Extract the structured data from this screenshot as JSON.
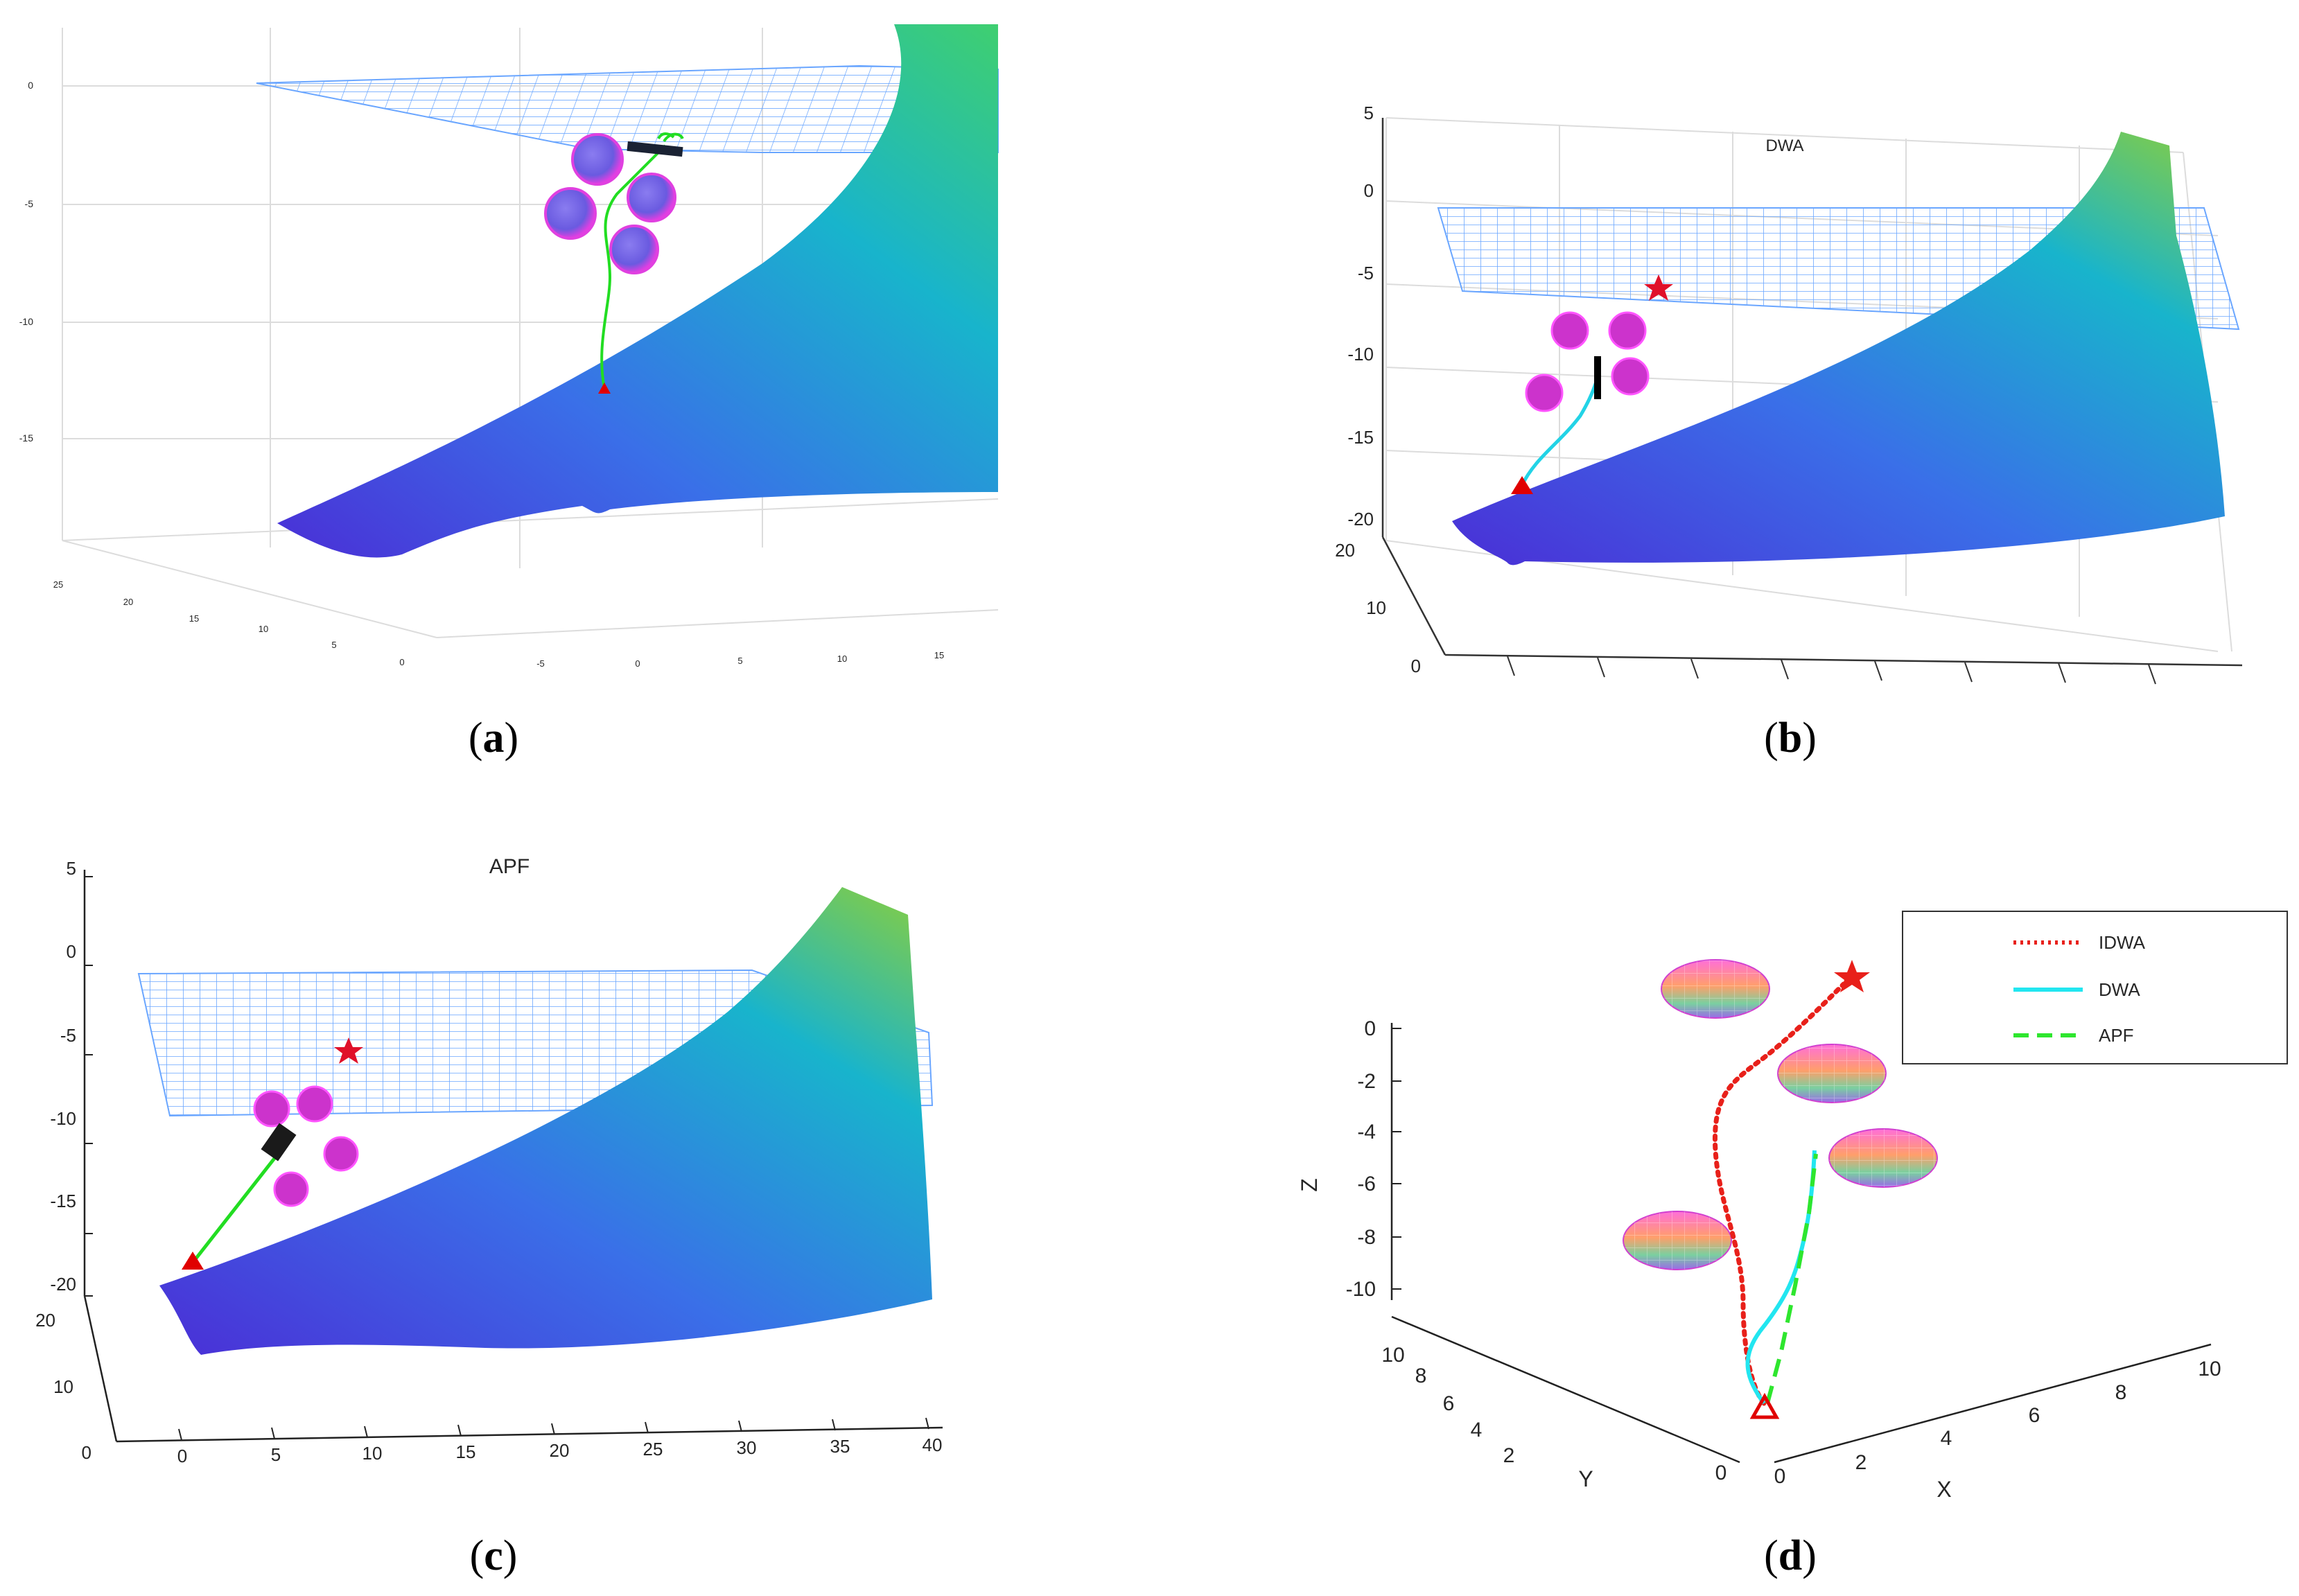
{
  "chart_data": [
    {
      "panel": "a",
      "type": "3d-surface-path",
      "caption_letter": "a",
      "title": "",
      "z_ticks": [
        "0",
        "-5",
        "-10",
        "-15"
      ],
      "y_ticks": [
        "25",
        "20",
        "15",
        "10",
        "5",
        "0"
      ],
      "x_ticks": [
        "-5",
        "0",
        "5",
        "10",
        "15"
      ],
      "series": [
        {
          "name": "IDWA path",
          "color": "#22dd22"
        }
      ],
      "obstacles": 4,
      "colors": {
        "surface_low": "#5a3fe0",
        "surface_high": "#3fcf6a",
        "mesh": "#6aa6ff"
      }
    },
    {
      "panel": "b",
      "type": "3d-surface-path",
      "caption_letter": "b",
      "title": "DWA",
      "z_ticks": [
        "5",
        "0",
        "-5",
        "-10",
        "-15",
        "-20"
      ],
      "y_ticks": [
        "20",
        "10",
        "0"
      ],
      "series": [
        {
          "name": "DWA path",
          "color": "#22d3e6"
        }
      ],
      "obstacles": 4
    },
    {
      "panel": "c",
      "type": "3d-surface-path",
      "caption_letter": "c",
      "title": "APF",
      "z_ticks": [
        "5",
        "0",
        "-5",
        "-10",
        "-15",
        "-20"
      ],
      "y_ticks": [
        "20",
        "10",
        "0"
      ],
      "x_ticks": [
        "0",
        "5",
        "10",
        "15",
        "20",
        "25",
        "30",
        "35",
        "40"
      ],
      "series": [
        {
          "name": "APF path",
          "color": "#22dd22"
        }
      ],
      "obstacles": 4
    },
    {
      "panel": "d",
      "type": "3d-line",
      "caption_letter": "d",
      "title": "",
      "zlabel": "Z",
      "ylabel": "Y",
      "xlabel": "X",
      "z_ticks": [
        "0",
        "-2",
        "-4",
        "-6",
        "-8",
        "-10"
      ],
      "y_ticks": [
        "10",
        "8",
        "6",
        "4",
        "2",
        "0"
      ],
      "x_ticks": [
        "0",
        "2",
        "4",
        "6",
        "8",
        "10"
      ],
      "legend": [
        {
          "name": "IDWA",
          "color": "#e8201a",
          "style": "dotted"
        },
        {
          "name": "DWA",
          "color": "#22e6f0",
          "style": "solid"
        },
        {
          "name": "APF",
          "color": "#2ee62e",
          "style": "dashed"
        }
      ],
      "obstacles": 4
    }
  ]
}
